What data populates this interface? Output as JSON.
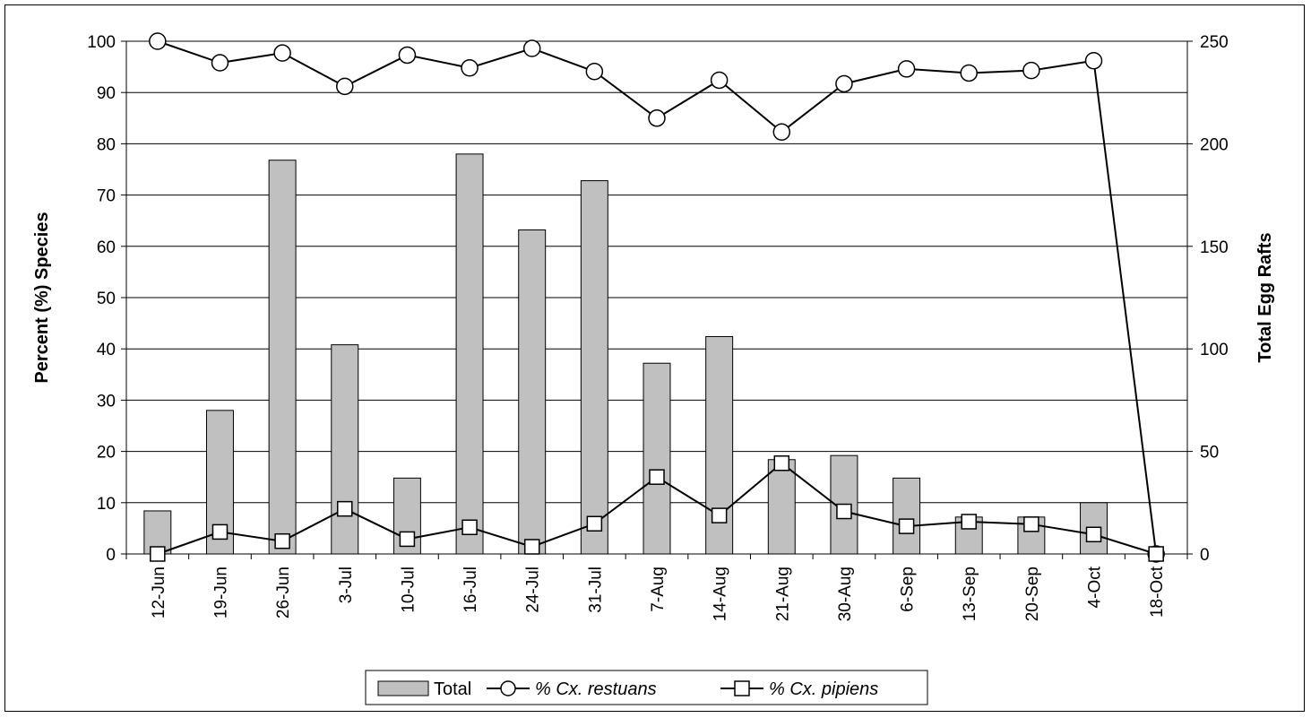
{
  "chart_data": {
    "type": "bar+line",
    "categories": [
      "12-Jun",
      "19-Jun",
      "26-Jun",
      "3-Jul",
      "10-Jul",
      "16-Jul",
      "24-Jul",
      "31-Jul",
      "7-Aug",
      "14-Aug",
      "21-Aug",
      "30-Aug",
      "6-Sep",
      "13-Sep",
      "20-Sep",
      "4-Oct",
      "18-Oct"
    ],
    "ylabel_left": "Percent (%) Species",
    "ylabel_right": "Total Egg Rafts",
    "ylim_left": [
      0,
      100
    ],
    "ylim_right": [
      0,
      250
    ],
    "yticks_left": [
      "0",
      "10",
      "20",
      "30",
      "40",
      "50",
      "60",
      "70",
      "80",
      "90",
      "100"
    ],
    "yticks_right": [
      "0",
      "50",
      "100",
      "150",
      "200",
      "250"
    ],
    "grid": true,
    "legend_position": "bottom",
    "series": [
      {
        "name": "Total",
        "kind": "bar",
        "axis": "right",
        "color": "#c0c0c0",
        "values": [
          21,
          70,
          192,
          102,
          37,
          195,
          158,
          182,
          93,
          106,
          46,
          48,
          37,
          18,
          18,
          25,
          0
        ]
      },
      {
        "name": "% Cx. restuans",
        "kind": "line",
        "axis": "left",
        "marker": "circle",
        "values": [
          100,
          95.8,
          97.7,
          91.2,
          97.3,
          94.8,
          98.6,
          94.1,
          85,
          92.4,
          82.3,
          91.7,
          94.6,
          93.8,
          94.3,
          96.2,
          0
        ]
      },
      {
        "name": "% Cx. pipiens",
        "kind": "line",
        "axis": "left",
        "marker": "square",
        "values": [
          0,
          4.3,
          2.5,
          8.8,
          2.9,
          5.2,
          1.4,
          5.9,
          15,
          7.5,
          17.7,
          8.3,
          5.4,
          6.3,
          5.8,
          3.8,
          0
        ]
      }
    ]
  },
  "legend": {
    "total_label": "Total",
    "restuans_label": "% Cx. restuans",
    "pipiens_label": "% Cx. pipiens"
  }
}
